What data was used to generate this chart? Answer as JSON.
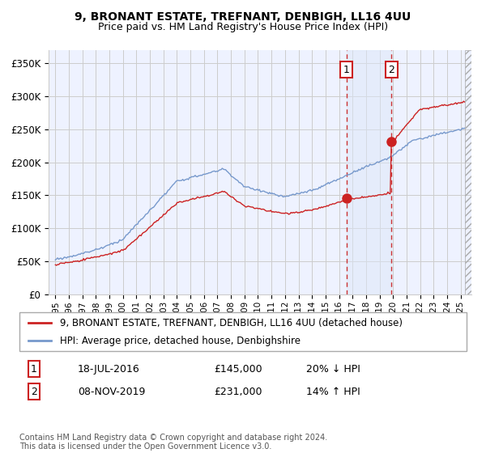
{
  "title": "9, BRONANT ESTATE, TREFNANT, DENBIGH, LL16 4UU",
  "subtitle": "Price paid vs. HM Land Registry's House Price Index (HPI)",
  "ytick_vals": [
    0,
    50000,
    100000,
    150000,
    200000,
    250000,
    300000,
    350000
  ],
  "ylim": [
    0,
    370000
  ],
  "xlim_start": 1994.5,
  "xlim_end": 2025.8,
  "sale1_date": 2016.54,
  "sale1_price": 145000,
  "sale1_label": "1",
  "sale1_text": "18-JUL-2016",
  "sale1_amount": "£145,000",
  "sale1_rel": "20% ↓ HPI",
  "sale2_date": 2019.87,
  "sale2_price": 231000,
  "sale2_label": "2",
  "sale2_text": "08-NOV-2019",
  "sale2_amount": "£231,000",
  "sale2_rel": "14% ↑ HPI",
  "legend_label1": "9, BRONANT ESTATE, TREFNANT, DENBIGH, LL16 4UU (detached house)",
  "legend_label2": "HPI: Average price, detached house, Denbighshire",
  "footnote": "Contains HM Land Registry data © Crown copyright and database right 2024.\nThis data is licensed under the Open Government Licence v3.0.",
  "hpi_color": "#7799cc",
  "price_color": "#cc2222",
  "dashed_color": "#cc3333",
  "bg_color": "#eef2ff",
  "span_color": "#dde8f8",
  "grid_color": "#cccccc",
  "title_fontsize": 10,
  "subtitle_fontsize": 9,
  "tick_fontsize": 8,
  "legend_fontsize": 8.5
}
